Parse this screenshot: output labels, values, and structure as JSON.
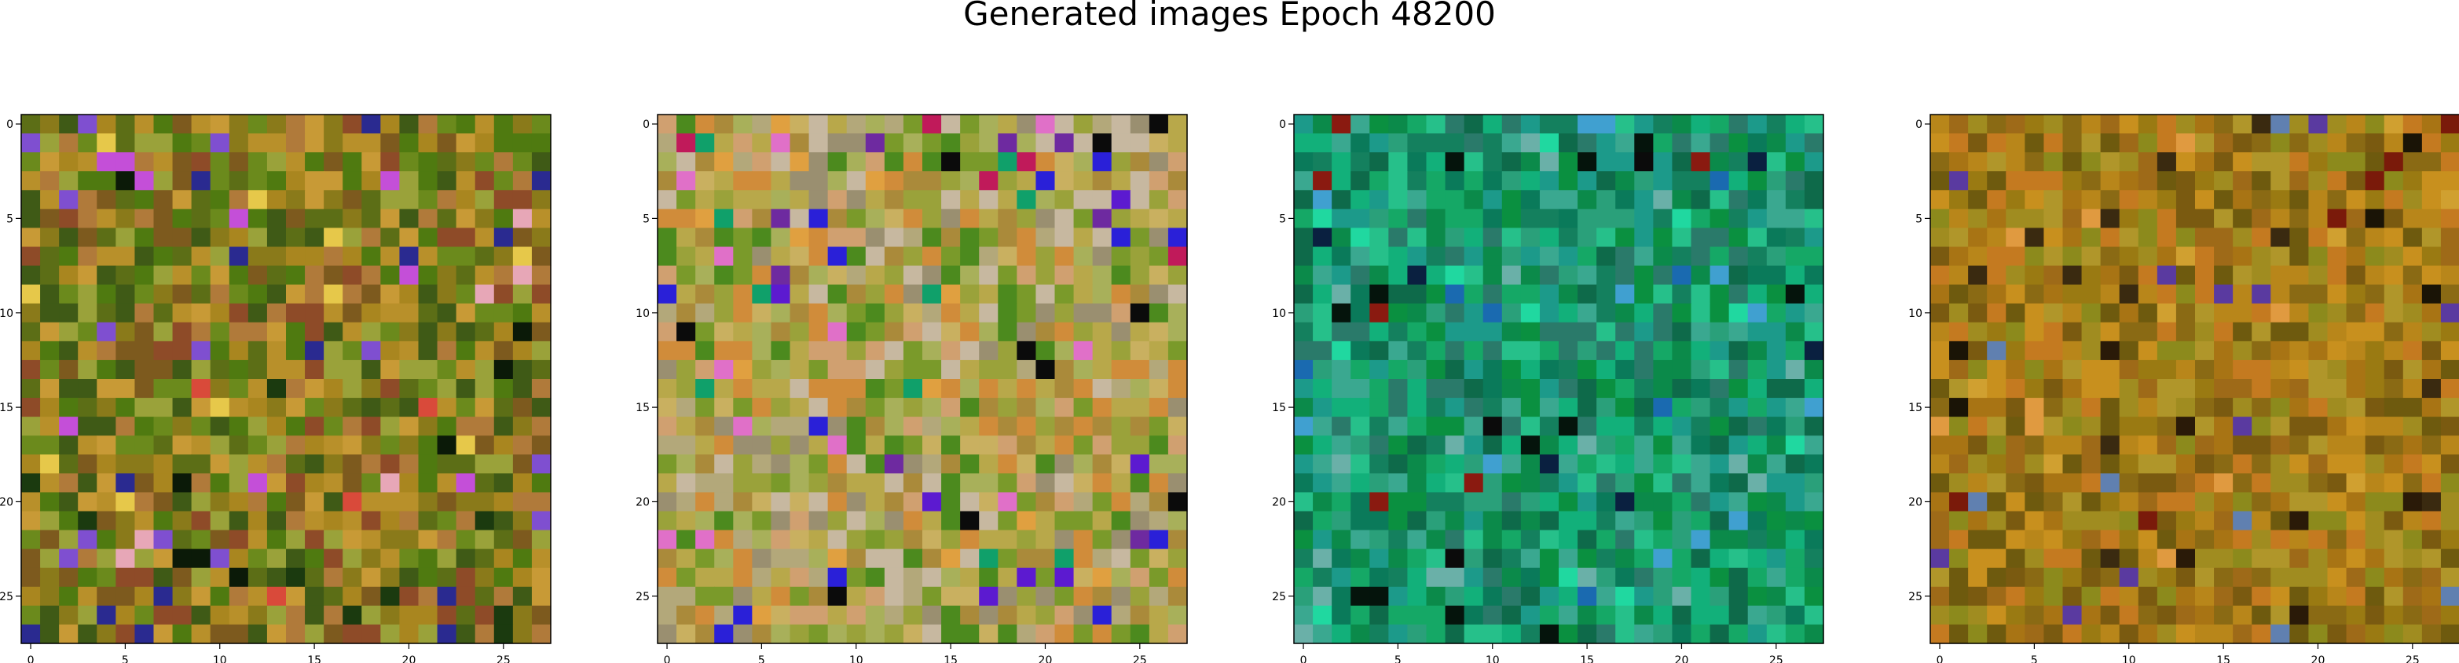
{
  "figure": {
    "title": "Generated images Epoch 48200"
  },
  "chart_data": [
    {
      "type": "heatmap",
      "grid_size": 28,
      "xlim": [
        -0.5,
        27.5
      ],
      "ylim": [
        27.5,
        -0.5
      ],
      "xticks": [
        0,
        5,
        10,
        15,
        20,
        25
      ],
      "yticks": [
        0,
        5,
        10,
        15,
        20,
        25
      ],
      "title": "",
      "xlabel": "",
      "ylabel": "",
      "palette": [
        "#8a7a1a",
        "#6b8a1c",
        "#a9861f",
        "#5c6e16",
        "#b8902a",
        "#7d5a1e",
        "#9aa23a",
        "#4f7a10",
        "#c89a36",
        "#8e4b28",
        "#3f5a16",
        "#b07a3a"
      ],
      "accents": [
        "#c44fd8",
        "#2a2a90",
        "#d94a3a",
        "#1b3a0f",
        "#e6c84a",
        "#7f4fd0",
        "#0b1a08",
        "#e7a7b7"
      ],
      "seed": 11
    },
    {
      "type": "heatmap",
      "grid_size": 28,
      "xlim": [
        -0.5,
        27.5
      ],
      "ylim": [
        27.5,
        -0.5
      ],
      "xticks": [
        0,
        5,
        10,
        15,
        20,
        25
      ],
      "yticks": [
        0,
        5,
        10,
        15,
        20,
        25
      ],
      "title": "",
      "xlabel": "",
      "ylabel": "",
      "palette": [
        "#b8a84a",
        "#9aa23a",
        "#c9b060",
        "#7a9a2a",
        "#d0a070",
        "#b3a87a",
        "#4c8a1e",
        "#c7b8a0",
        "#aa8a3a",
        "#d08c3a",
        "#a8b05a",
        "#9a8f70"
      ],
      "accents": [
        "#2a20d8",
        "#5c1ad0",
        "#c01a5a",
        "#0b0b0b",
        "#e070c8",
        "#10a06a",
        "#e0a040",
        "#6e2aa0"
      ],
      "seed": 23
    },
    {
      "type": "heatmap",
      "grid_size": 28,
      "xlim": [
        -0.5,
        27.5
      ],
      "ylim": [
        27.5,
        -0.5
      ],
      "xticks": [
        0,
        5,
        10,
        15,
        20,
        25
      ],
      "yticks": [
        0,
        5,
        10,
        15,
        20,
        25
      ],
      "title": "",
      "xlabel": "",
      "ylabel": "",
      "palette": [
        "#0b8a4a",
        "#15a866",
        "#0a7a5a",
        "#2aa07a",
        "#12b07a",
        "#0e6a4a",
        "#3aa890",
        "#1c9a8a",
        "#0a9040",
        "#26c08a",
        "#2a7a6a",
        "#14805e"
      ],
      "accents": [
        "#05140c",
        "#1a6ab0",
        "#8a1a10",
        "#6ab0a8",
        "#0a2040",
        "#20d8a0",
        "#40a0d0",
        "#0b0b0b"
      ],
      "seed": 37
    },
    {
      "type": "heatmap",
      "grid_size": 28,
      "xlim": [
        -0.5,
        27.5
      ],
      "ylim": [
        27.5,
        -0.5
      ],
      "xticks": [
        0,
        5,
        10,
        15,
        20,
        25
      ],
      "yticks": [
        0,
        5,
        10,
        15,
        20,
        25
      ],
      "title": "",
      "xlabel": "",
      "ylabel": "",
      "palette": [
        "#9a7a12",
        "#b8861a",
        "#8a6a14",
        "#a08c20",
        "#c8901e",
        "#7a5a10",
        "#b0962a",
        "#9e6a18",
        "#c47a20",
        "#8c8a1c",
        "#a87414",
        "#6e5a0e"
      ],
      "accents": [
        "#2a1a08",
        "#5a3aa0",
        "#d0a030",
        "#7a1a0a",
        "#3a2a10",
        "#6080b0",
        "#e09a40",
        "#1a1406"
      ],
      "seed": 53
    }
  ]
}
